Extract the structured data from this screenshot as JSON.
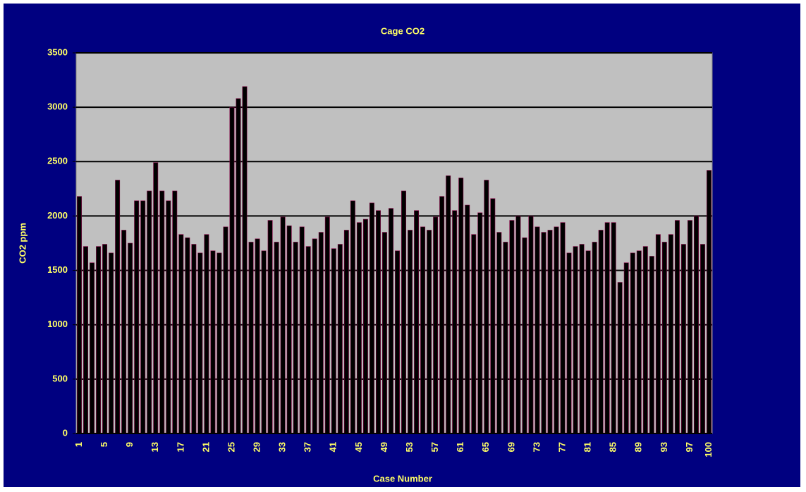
{
  "chart_data": {
    "type": "bar",
    "title": "Cage CO2",
    "x_label": "Case Number",
    "y_label": "CO2 ppm",
    "categories": [
      "1",
      null,
      null,
      null,
      "5",
      null,
      null,
      null,
      "9",
      null,
      null,
      null,
      "13",
      null,
      null,
      null,
      "17",
      null,
      null,
      null,
      "21",
      null,
      null,
      null,
      "25",
      null,
      null,
      null,
      "29",
      null,
      null,
      null,
      "33",
      null,
      null,
      null,
      "37",
      null,
      null,
      null,
      "41",
      null,
      null,
      null,
      "45",
      null,
      null,
      null,
      "49",
      null,
      null,
      null,
      "53",
      null,
      null,
      null,
      "57",
      null,
      null,
      null,
      "61",
      null,
      null,
      null,
      "65",
      null,
      null,
      null,
      "69",
      null,
      null,
      null,
      "73",
      null,
      null,
      null,
      "77",
      null,
      null,
      null,
      "81",
      null,
      null,
      null,
      "85",
      null,
      null,
      null,
      "89",
      null,
      null,
      null,
      "93",
      null,
      null,
      null,
      "97",
      null,
      null,
      "100"
    ],
    "values": [
      2180,
      1720,
      1570,
      1720,
      1740,
      1660,
      2330,
      1870,
      1750,
      2140,
      2140,
      2230,
      2490,
      2230,
      2140,
      2230,
      1830,
      1800,
      1740,
      1660,
      1830,
      1680,
      1660,
      1900,
      3000,
      3080,
      3190,
      1760,
      1790,
      1680,
      1960,
      1760,
      1990,
      1910,
      1760,
      1900,
      1720,
      1790,
      1850,
      1990,
      1700,
      1740,
      1870,
      2140,
      1940,
      1970,
      2120,
      2050,
      1850,
      2070,
      1680,
      2230,
      1870,
      2050,
      1900,
      1870,
      1990,
      2180,
      2370,
      2050,
      2350,
      2100,
      1830,
      2030,
      2330,
      2160,
      1850,
      1760,
      1960,
      2000,
      1800,
      2000,
      1900,
      1850,
      1870,
      1900,
      1940,
      1660,
      1720,
      1740,
      1680,
      1760,
      1870,
      1940,
      1940,
      1390,
      1570,
      1660,
      1680,
      1720,
      1630,
      1830,
      1760,
      1830,
      1960,
      1740,
      1960,
      2000,
      1740,
      2420
    ],
    "color": "#000000",
    "ylim": [
      0,
      3500
    ],
    "yticks": [
      0,
      500,
      1000,
      1500,
      2000,
      2500,
      3000,
      3500
    ],
    "grid": true
  }
}
